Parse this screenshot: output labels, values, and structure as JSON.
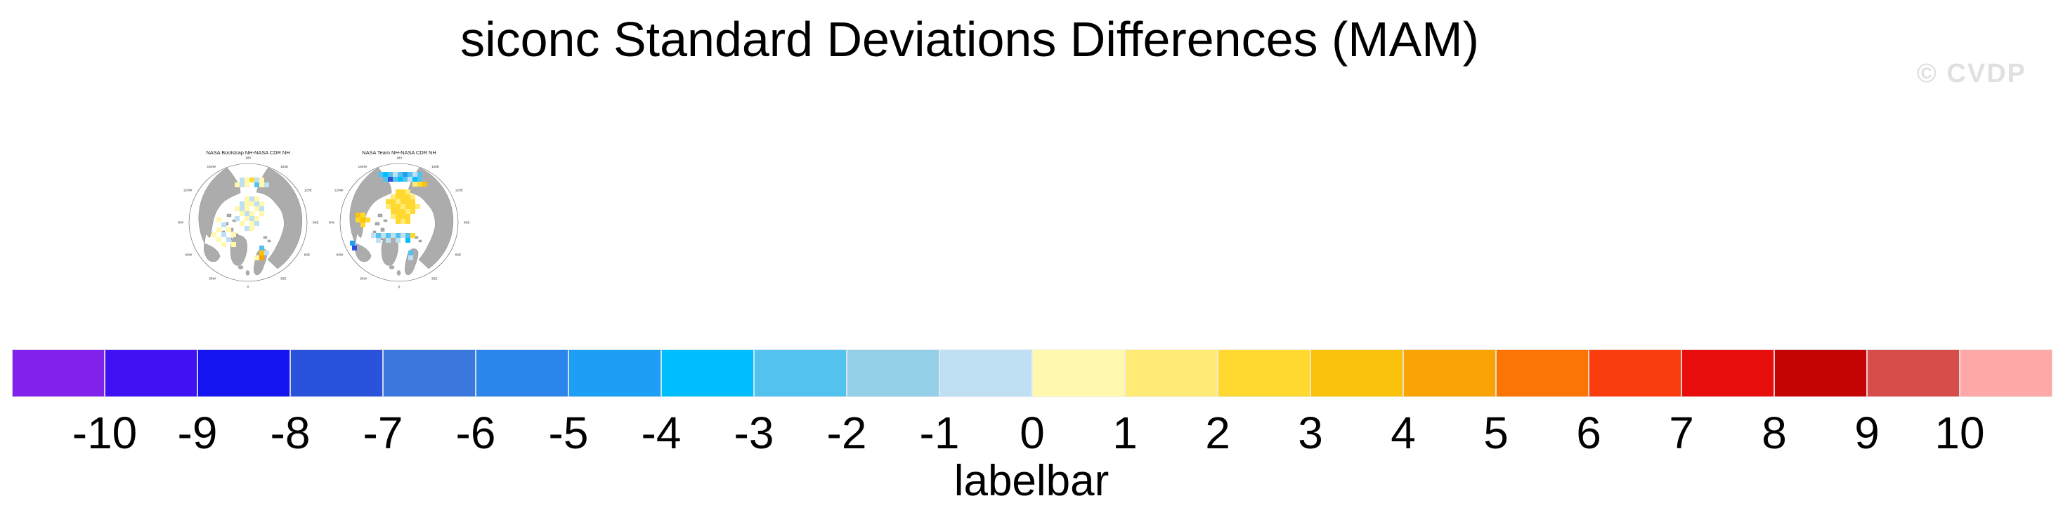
{
  "title": "siconc Standard Deviations Differences (MAM)",
  "watermark": "© CVDP",
  "map_colors": {
    "land": "#acacac",
    "land_edge": "#7d7d7d",
    "ocean": "#ffffff",
    "circle_edge": "#555555",
    "label_text": "#333333"
  },
  "maps": [
    {
      "title": "NASA Bootstrap NH-NASA CDR NH",
      "lon_labels": [
        {
          "t": "180",
          "a": 0
        },
        {
          "t": "150E",
          "a": 30
        },
        {
          "t": "120E",
          "a": 60
        },
        {
          "t": "90E",
          "a": 90
        },
        {
          "t": "60E",
          "a": 120
        },
        {
          "t": "30E",
          "a": 150
        },
        {
          "t": "0",
          "a": 180
        },
        {
          "t": "30W",
          "a": 210
        },
        {
          "t": "60W",
          "a": 240
        },
        {
          "t": "90W",
          "a": 270
        },
        {
          "t": "120W",
          "a": 300
        },
        {
          "t": "150W",
          "a": 330
        }
      ],
      "cells": [
        [
          88,
          48,
          10
        ],
        [
          95,
          48,
          11
        ],
        [
          102,
          48,
          13
        ],
        [
          109,
          48,
          10
        ],
        [
          116,
          48,
          11
        ],
        [
          123,
          55,
          10
        ],
        [
          81,
          55,
          11
        ],
        [
          88,
          55,
          10
        ],
        [
          95,
          55,
          11
        ],
        [
          109,
          55,
          8
        ],
        [
          116,
          55,
          11
        ],
        [
          95,
          75,
          11
        ],
        [
          102,
          75,
          10
        ],
        [
          109,
          75,
          11
        ],
        [
          88,
          82,
          10
        ],
        [
          95,
          82,
          11
        ],
        [
          102,
          82,
          11
        ],
        [
          109,
          82,
          10
        ],
        [
          116,
          82,
          11
        ],
        [
          81,
          89,
          11
        ],
        [
          88,
          89,
          10
        ],
        [
          95,
          89,
          11
        ],
        [
          109,
          89,
          11
        ],
        [
          116,
          89,
          10
        ],
        [
          88,
          96,
          11
        ],
        [
          95,
          96,
          10
        ],
        [
          102,
          96,
          11
        ],
        [
          116,
          96,
          11
        ],
        [
          81,
          103,
          10
        ],
        [
          95,
          103,
          11
        ],
        [
          102,
          103,
          10
        ],
        [
          109,
          103,
          11
        ],
        [
          88,
          110,
          11
        ],
        [
          102,
          110,
          11
        ],
        [
          109,
          110,
          10
        ],
        [
          95,
          117,
          10
        ],
        [
          102,
          117,
          11
        ],
        [
          55,
          105,
          11
        ],
        [
          62,
          112,
          10
        ],
        [
          55,
          119,
          11
        ],
        [
          69,
          119,
          11
        ],
        [
          62,
          126,
          10
        ],
        [
          48,
          126,
          11
        ],
        [
          76,
          126,
          11
        ],
        [
          69,
          133,
          10
        ],
        [
          55,
          133,
          11
        ],
        [
          76,
          140,
          11
        ],
        [
          62,
          140,
          11
        ],
        [
          116,
          145,
          8
        ],
        [
          116,
          152,
          14
        ],
        [
          116,
          159,
          15
        ],
        [
          109,
          159,
          11
        ],
        [
          123,
          152,
          10
        ]
      ]
    },
    {
      "title": "NASA Team NH-NASA CDR NH",
      "lon_labels": [
        {
          "t": "180",
          "a": 0
        },
        {
          "t": "150E",
          "a": 30
        },
        {
          "t": "120E",
          "a": 60
        },
        {
          "t": "90E",
          "a": 90
        },
        {
          "t": "60E",
          "a": 120
        },
        {
          "t": "30E",
          "a": 150
        },
        {
          "t": "0",
          "a": 180
        },
        {
          "t": "30W",
          "a": 210
        },
        {
          "t": "60W",
          "a": 240
        },
        {
          "t": "90W",
          "a": 270
        },
        {
          "t": "120W",
          "a": 300
        },
        {
          "t": "150W",
          "a": 330
        }
      ],
      "cells": [
        [
          70,
          40,
          8
        ],
        [
          77,
          40,
          7
        ],
        [
          84,
          40,
          8
        ],
        [
          91,
          40,
          10
        ],
        [
          98,
          40,
          8
        ],
        [
          105,
          40,
          6
        ],
        [
          112,
          40,
          8
        ],
        [
          119,
          40,
          10
        ],
        [
          126,
          40,
          8
        ],
        [
          77,
          47,
          8
        ],
        [
          84,
          47,
          3
        ],
        [
          91,
          47,
          8
        ],
        [
          98,
          47,
          7
        ],
        [
          105,
          47,
          8
        ],
        [
          112,
          47,
          10
        ],
        [
          119,
          47,
          7
        ],
        [
          126,
          47,
          8
        ],
        [
          119,
          54,
          12
        ],
        [
          126,
          54,
          13
        ],
        [
          133,
          54,
          14
        ],
        [
          95,
          65,
          13
        ],
        [
          102,
          65,
          13
        ],
        [
          109,
          65,
          12
        ],
        [
          88,
          72,
          12
        ],
        [
          95,
          72,
          13
        ],
        [
          102,
          72,
          13
        ],
        [
          109,
          72,
          13
        ],
        [
          116,
          72,
          12
        ],
        [
          81,
          79,
          13
        ],
        [
          88,
          79,
          13
        ],
        [
          95,
          79,
          12
        ],
        [
          102,
          79,
          13
        ],
        [
          109,
          79,
          13
        ],
        [
          116,
          79,
          13
        ],
        [
          81,
          86,
          12
        ],
        [
          88,
          86,
          13
        ],
        [
          95,
          86,
          13
        ],
        [
          102,
          86,
          12
        ],
        [
          109,
          86,
          13
        ],
        [
          116,
          86,
          13
        ],
        [
          123,
          86,
          12
        ],
        [
          88,
          93,
          13
        ],
        [
          95,
          93,
          13
        ],
        [
          102,
          93,
          13
        ],
        [
          109,
          93,
          12
        ],
        [
          116,
          93,
          13
        ],
        [
          88,
          100,
          12
        ],
        [
          95,
          100,
          13
        ],
        [
          102,
          100,
          13
        ],
        [
          109,
          100,
          13
        ],
        [
          95,
          107,
          13
        ],
        [
          102,
          107,
          12
        ],
        [
          109,
          107,
          13
        ],
        [
          38,
          98,
          14
        ],
        [
          45,
          98,
          13
        ],
        [
          38,
          105,
          13
        ],
        [
          45,
          105,
          14
        ],
        [
          52,
          105,
          13
        ],
        [
          45,
          112,
          13
        ],
        [
          60,
          127,
          10
        ],
        [
          67,
          127,
          8
        ],
        [
          74,
          127,
          10
        ],
        [
          81,
          127,
          8
        ],
        [
          88,
          127,
          10
        ],
        [
          95,
          127,
          8
        ],
        [
          102,
          127,
          10
        ],
        [
          109,
          127,
          8
        ],
        [
          116,
          127,
          13
        ],
        [
          67,
          134,
          10
        ],
        [
          81,
          134,
          10
        ],
        [
          95,
          134,
          10
        ],
        [
          109,
          134,
          7
        ],
        [
          113,
          152,
          8
        ],
        [
          113,
          159,
          10
        ],
        [
          30,
          138,
          6
        ],
        [
          33,
          145,
          3
        ]
      ]
    }
  ],
  "labelbar": {
    "caption": "labelbar",
    "tick_labels": [
      "-10",
      "-9",
      "-8",
      "-7",
      "-6",
      "-5",
      "-4",
      "-3",
      "-2",
      "-1",
      "0",
      "1",
      "2",
      "3",
      "4",
      "5",
      "6",
      "7",
      "8",
      "9",
      "10"
    ],
    "box_colors": [
      "#8122ec",
      "#3f11f3",
      "#1414f0",
      "#2b52db",
      "#3b78de",
      "#2b85eb",
      "#1f9ef5",
      "#00bfff",
      "#54c2ee",
      "#96cfe8",
      "#bfe0f2",
      "#fff8ad",
      "#ffeb75",
      "#ffd930",
      "#fac20a",
      "#faa305",
      "#fa7503",
      "#fa3d0f",
      "#e80d0d",
      "#c40303",
      "#d64d4a",
      "#ffa8a8"
    ]
  },
  "chart_data": {
    "type": "heatmap",
    "title": "siconc Standard Deviations Differences (MAM)",
    "panels": [
      "NASA Bootstrap NH-NASA CDR NH",
      "NASA Team NH-NASA CDR NH"
    ],
    "projection": "north-polar-stereographic",
    "colorbar": {
      "label": "labelbar",
      "levels": [
        -10,
        -9,
        -8,
        -7,
        -6,
        -5,
        -4,
        -3,
        -2,
        -1,
        0,
        1,
        2,
        3,
        4,
        5,
        6,
        7,
        8,
        9,
        10
      ],
      "colors": [
        "#8122ec",
        "#3f11f3",
        "#1414f0",
        "#2b52db",
        "#3b78de",
        "#2b85eb",
        "#1f9ef5",
        "#00bfff",
        "#54c2ee",
        "#96cfe8",
        "#bfe0f2",
        "#fff8ad",
        "#ffeb75",
        "#ffd930",
        "#fac20a",
        "#faa305",
        "#fa7503",
        "#fa3d0f",
        "#e80d0d",
        "#c40303",
        "#d64d4a",
        "#ffa8a8"
      ],
      "orientation": "horizontal"
    },
    "annotations": [
      "© CVDP"
    ]
  }
}
